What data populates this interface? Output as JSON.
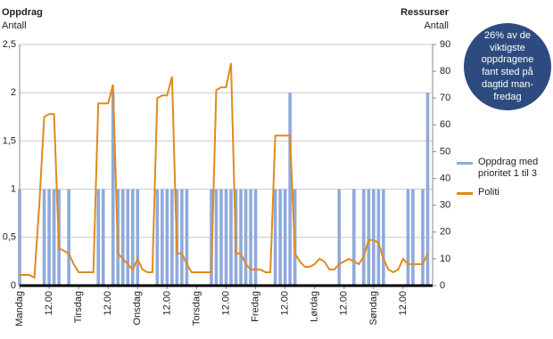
{
  "chart_data": {
    "type": "bar_line",
    "y_title": "Oppdrag",
    "y_subtitle": "Antall",
    "y2_title": "Ressurser",
    "y2_subtitle": "Antall",
    "annotation": "26%  av de viktigste oppdragene fant sted på dagtid man-fredag",
    "annotation_color": "#2d4b7e",
    "x": [
      0,
      2,
      4,
      6,
      8,
      10,
      12,
      14,
      16,
      18,
      20,
      22,
      24,
      26,
      28,
      30,
      32,
      34,
      36,
      38,
      40,
      42,
      44,
      46,
      48,
      50,
      52,
      54,
      56,
      58,
      60,
      62,
      64,
      66,
      68,
      70,
      72,
      74,
      76,
      78,
      80,
      82,
      84,
      86,
      88,
      90,
      92,
      94,
      96,
      98,
      100,
      102,
      104,
      106,
      108,
      110,
      112,
      114,
      116,
      118,
      120,
      122,
      124,
      126,
      128,
      130,
      132,
      134,
      136,
      138,
      140,
      142,
      144,
      146,
      148,
      150,
      152,
      154,
      156,
      158,
      160,
      162,
      164,
      166
    ],
    "xlim": [
      0,
      168
    ],
    "xticks": [
      {
        "value": 0,
        "label": "Mandag"
      },
      {
        "value": 12,
        "label": "12.00"
      },
      {
        "value": 24,
        "label": "Tirsdag"
      },
      {
        "value": 36,
        "label": "12.00"
      },
      {
        "value": 48,
        "label": "Onsdag"
      },
      {
        "value": 60,
        "label": "12.00"
      },
      {
        "value": 72,
        "label": "Torsdag"
      },
      {
        "value": 84,
        "label": "12.00"
      },
      {
        "value": 96,
        "label": "Fredag"
      },
      {
        "value": 108,
        "label": "12.00"
      },
      {
        "value": 120,
        "label": "Lørdag"
      },
      {
        "value": 132,
        "label": "12.00"
      },
      {
        "value": 144,
        "label": "Søndag"
      },
      {
        "value": 156,
        "label": "12.00"
      }
    ],
    "ylim": [
      0,
      2.5
    ],
    "yticks": [
      0,
      {
        "value": 0.5,
        "label": "0,5"
      },
      1,
      {
        "value": 1.5,
        "label": "1,5"
      },
      2,
      {
        "value": 2.5,
        "label": "2,5"
      }
    ],
    "y2lim": [
      0,
      90
    ],
    "y2ticks": [
      0,
      10,
      20,
      30,
      40,
      50,
      60,
      70,
      80,
      90
    ],
    "grid": true,
    "series": [
      {
        "name": "Oppdrag med prioritet 1 til 3",
        "color": "#8faadc",
        "type": "bar",
        "values": [
          1,
          0,
          0,
          0,
          0,
          1,
          1,
          1,
          1,
          0,
          1,
          0,
          0,
          0,
          0,
          0,
          1,
          1,
          0,
          2,
          1,
          1,
          1,
          1,
          1,
          0,
          0,
          0,
          1,
          1,
          1,
          1,
          1,
          1,
          1,
          0,
          0,
          0,
          0,
          1,
          1,
          1,
          1,
          1,
          1,
          1,
          1,
          1,
          1,
          0,
          0,
          0,
          1,
          1,
          1,
          2,
          1,
          0,
          0,
          0,
          0,
          0,
          0,
          0,
          0,
          1,
          0,
          0,
          1,
          0,
          1,
          1,
          1,
          1,
          1,
          0,
          0,
          0,
          0,
          1,
          1,
          0,
          1,
          2
        ]
      },
      {
        "name": "Politi",
        "color": "#e08a1e",
        "type": "line",
        "axis": "y2",
        "values": [
          4,
          4,
          4,
          3,
          30,
          63,
          64,
          64,
          14,
          13,
          12,
          8,
          5,
          5,
          5,
          5,
          68,
          68,
          68,
          75,
          12,
          10,
          8,
          6,
          10,
          6,
          5,
          5,
          70,
          71,
          71,
          78,
          12,
          12,
          8,
          5,
          5,
          5,
          5,
          5,
          73,
          74,
          74,
          83,
          12,
          12,
          8,
          6,
          6,
          6,
          5,
          5,
          56,
          56,
          56,
          56,
          12,
          9,
          7,
          7,
          8,
          10,
          9,
          6,
          6,
          8,
          9,
          10,
          9,
          8,
          11,
          17,
          17,
          16,
          10,
          6,
          5,
          6,
          10,
          8,
          8,
          8,
          8,
          12
        ]
      }
    ]
  }
}
